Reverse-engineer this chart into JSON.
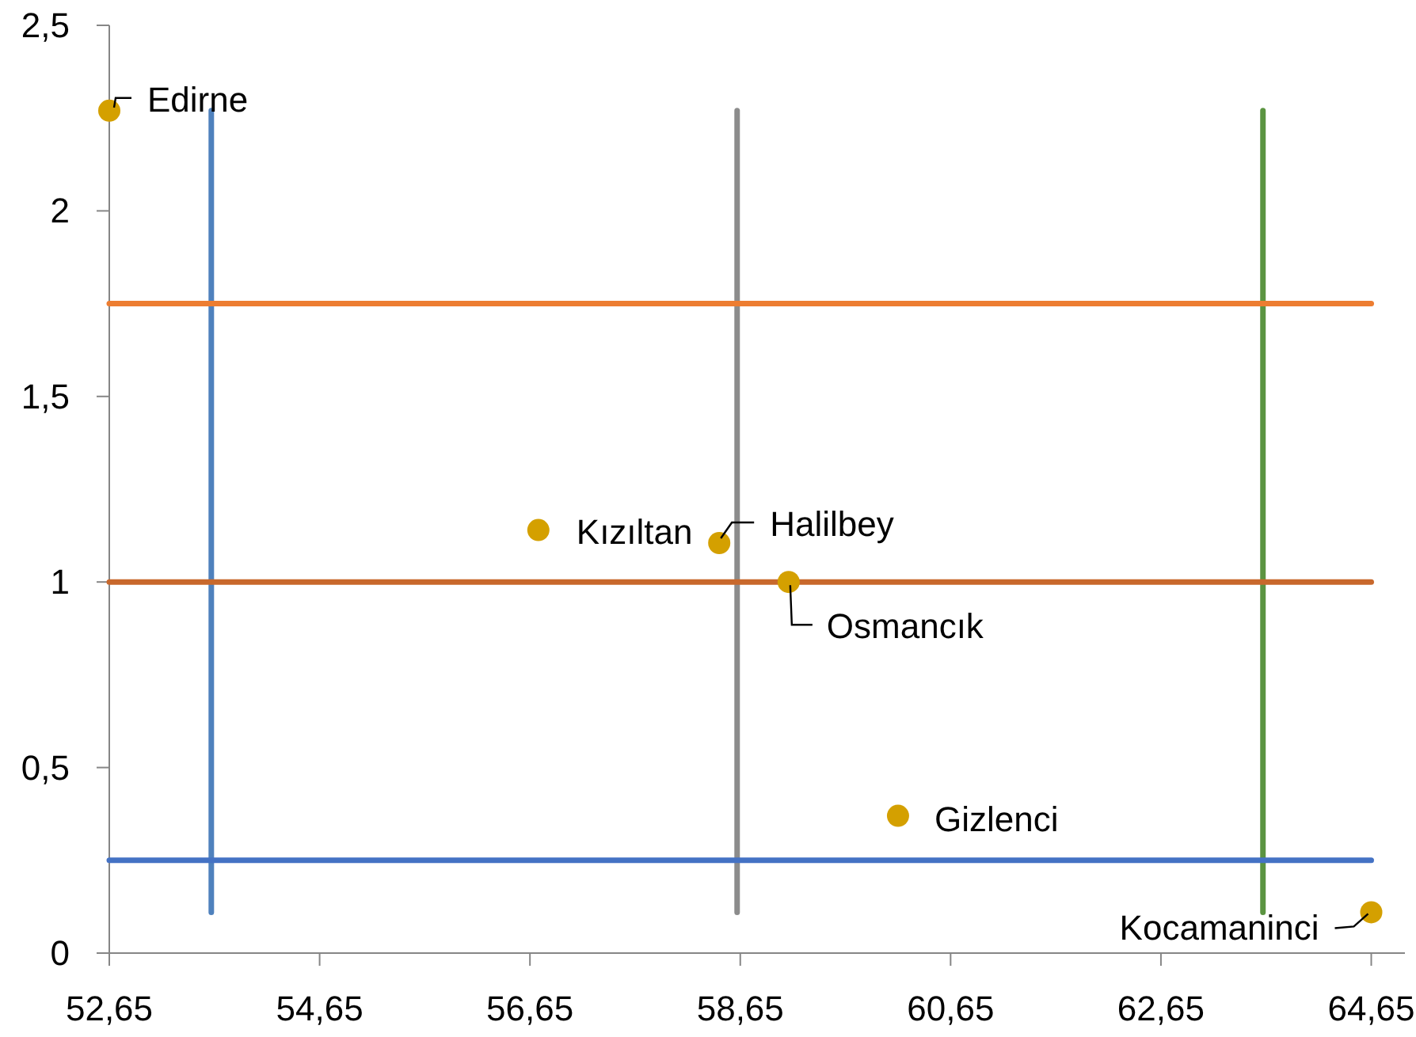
{
  "chart_data": {
    "type": "scatter",
    "xlim": [
      52.65,
      64.97
    ],
    "ylim": [
      0,
      2.5
    ],
    "xticks": [
      {
        "value": 52.65,
        "label": "52,65"
      },
      {
        "value": 54.65,
        "label": "54,65"
      },
      {
        "value": 56.65,
        "label": "56,65"
      },
      {
        "value": 58.65,
        "label": "58,65"
      },
      {
        "value": 60.65,
        "label": "60,65"
      },
      {
        "value": 62.65,
        "label": "62,65"
      },
      {
        "value": 64.65,
        "label": "64,65"
      }
    ],
    "yticks": [
      0,
      {
        "value": 0.5,
        "label": "0,5"
      },
      1,
      {
        "value": 1.5,
        "label": "1,5"
      },
      2,
      {
        "value": 2.5,
        "label": "2,5"
      }
    ],
    "grid": false,
    "series": [
      {
        "type": "line",
        "color": "#4f81bd",
        "x": [
          53.62,
          53.62
        ],
        "values": [
          0.11,
          2.27
        ]
      },
      {
        "type": "line",
        "color": "#8c8c8c",
        "x": [
          58.62,
          58.62
        ],
        "values": [
          0.11,
          2.27
        ]
      },
      {
        "type": "line",
        "color": "#5b9441",
        "x": [
          63.62,
          63.62
        ],
        "values": [
          0.11,
          2.27
        ]
      },
      {
        "type": "line",
        "color": "#ed7d31",
        "x": [
          52.65,
          64.65
        ],
        "values": [
          1.75,
          1.75
        ]
      },
      {
        "type": "line",
        "color": "#c8682c",
        "x": [
          52.65,
          64.65
        ],
        "values": [
          1,
          1
        ]
      },
      {
        "type": "line",
        "color": "#4472c4",
        "x": [
          52.65,
          64.65
        ],
        "values": [
          0.25,
          0.25
        ]
      },
      {
        "marker": "circle",
        "color": "#d4a000",
        "x": [
          52.65,
          56.73,
          58.45,
          59.11,
          60.15,
          64.65
        ],
        "values": [
          2.27,
          1.14,
          1.105,
          1.0,
          0.37,
          0.11
        ],
        "value_labels": [
          "Edirne",
          "Kızıltan",
          "Halilbey",
          "Osmancık",
          "Gizlenci",
          "Kocamaninci"
        ]
      }
    ]
  }
}
